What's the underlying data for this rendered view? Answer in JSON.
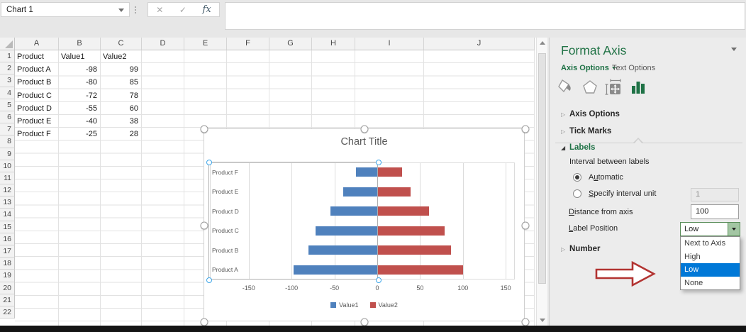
{
  "name_box": {
    "value": "Chart 1"
  },
  "formula_buttons": {
    "cancel": "✕",
    "enter": "✓",
    "fx": "fx"
  },
  "formula_bar": {
    "value": ""
  },
  "grid": {
    "column_letters": [
      "A",
      "B",
      "C",
      "D",
      "E",
      "F",
      "G",
      "H",
      "I",
      "J"
    ],
    "row_count": 22,
    "rows": [
      [
        "Product",
        "Value1",
        "Value2"
      ],
      [
        "Product A",
        "-98",
        "99"
      ],
      [
        "Product B",
        "-80",
        "85"
      ],
      [
        "Product C",
        "-72",
        "78"
      ],
      [
        "Product D",
        "-55",
        "60"
      ],
      [
        "Product E",
        "-40",
        "38"
      ],
      [
        "Product F",
        "-25",
        "28"
      ]
    ]
  },
  "chart_data": {
    "type": "bar",
    "orientation": "horizontal",
    "title": "Chart Title",
    "categories": [
      "Product A",
      "Product B",
      "Product C",
      "Product D",
      "Product E",
      "Product F"
    ],
    "series": [
      {
        "name": "Value1",
        "color": "#4f81bd",
        "values": [
          -98,
          -80,
          -72,
          -55,
          -40,
          -25
        ]
      },
      {
        "name": "Value2",
        "color": "#c0504d",
        "values": [
          99,
          85,
          78,
          60,
          38,
          28
        ]
      }
    ],
    "x_ticks": [
      -150,
      -100,
      -50,
      0,
      50,
      100,
      150
    ],
    "xlim": [
      -195,
      160
    ],
    "grid": true,
    "legend_position": "bottom",
    "category_axis_label_position": "low"
  },
  "format_panel": {
    "title": "Format Axis",
    "tabs": [
      {
        "label": "Axis Options"
      },
      {
        "label": "Text Options"
      }
    ],
    "icon_tabs": [
      "fill-icon",
      "effects-icon",
      "size-properties-icon",
      "chart-options-icon"
    ],
    "sections": [
      {
        "label": "Axis Options",
        "expanded": false
      },
      {
        "label": "Tick Marks",
        "expanded": false
      },
      {
        "label": "Labels",
        "expanded": true
      },
      {
        "label": "Number",
        "expanded": false
      }
    ],
    "labels_section": {
      "interval_label": "Interval between labels",
      "radio_options": [
        {
          "text": "Automatic",
          "underline": 1,
          "selected": true
        },
        {
          "text": "Specify interval unit",
          "underline": 0,
          "selected": false
        }
      ],
      "interval_unit_value": "1",
      "distance_label": {
        "text": "Distance from axis",
        "underline": 0
      },
      "distance_value": "100",
      "label_position_label": {
        "text": "Label Position",
        "underline": 0
      },
      "label_position_value": "Low",
      "dropdown_options": [
        "Next to Axis",
        "High",
        "Low",
        "None"
      ],
      "dropdown_selected_index": 2
    }
  },
  "colors": {
    "excel_green": "#217346",
    "series1": "#4f81bd",
    "series2": "#c0504d",
    "dropdown_highlight": "#0078d7",
    "annotation_arrow_red": "#b23331"
  }
}
